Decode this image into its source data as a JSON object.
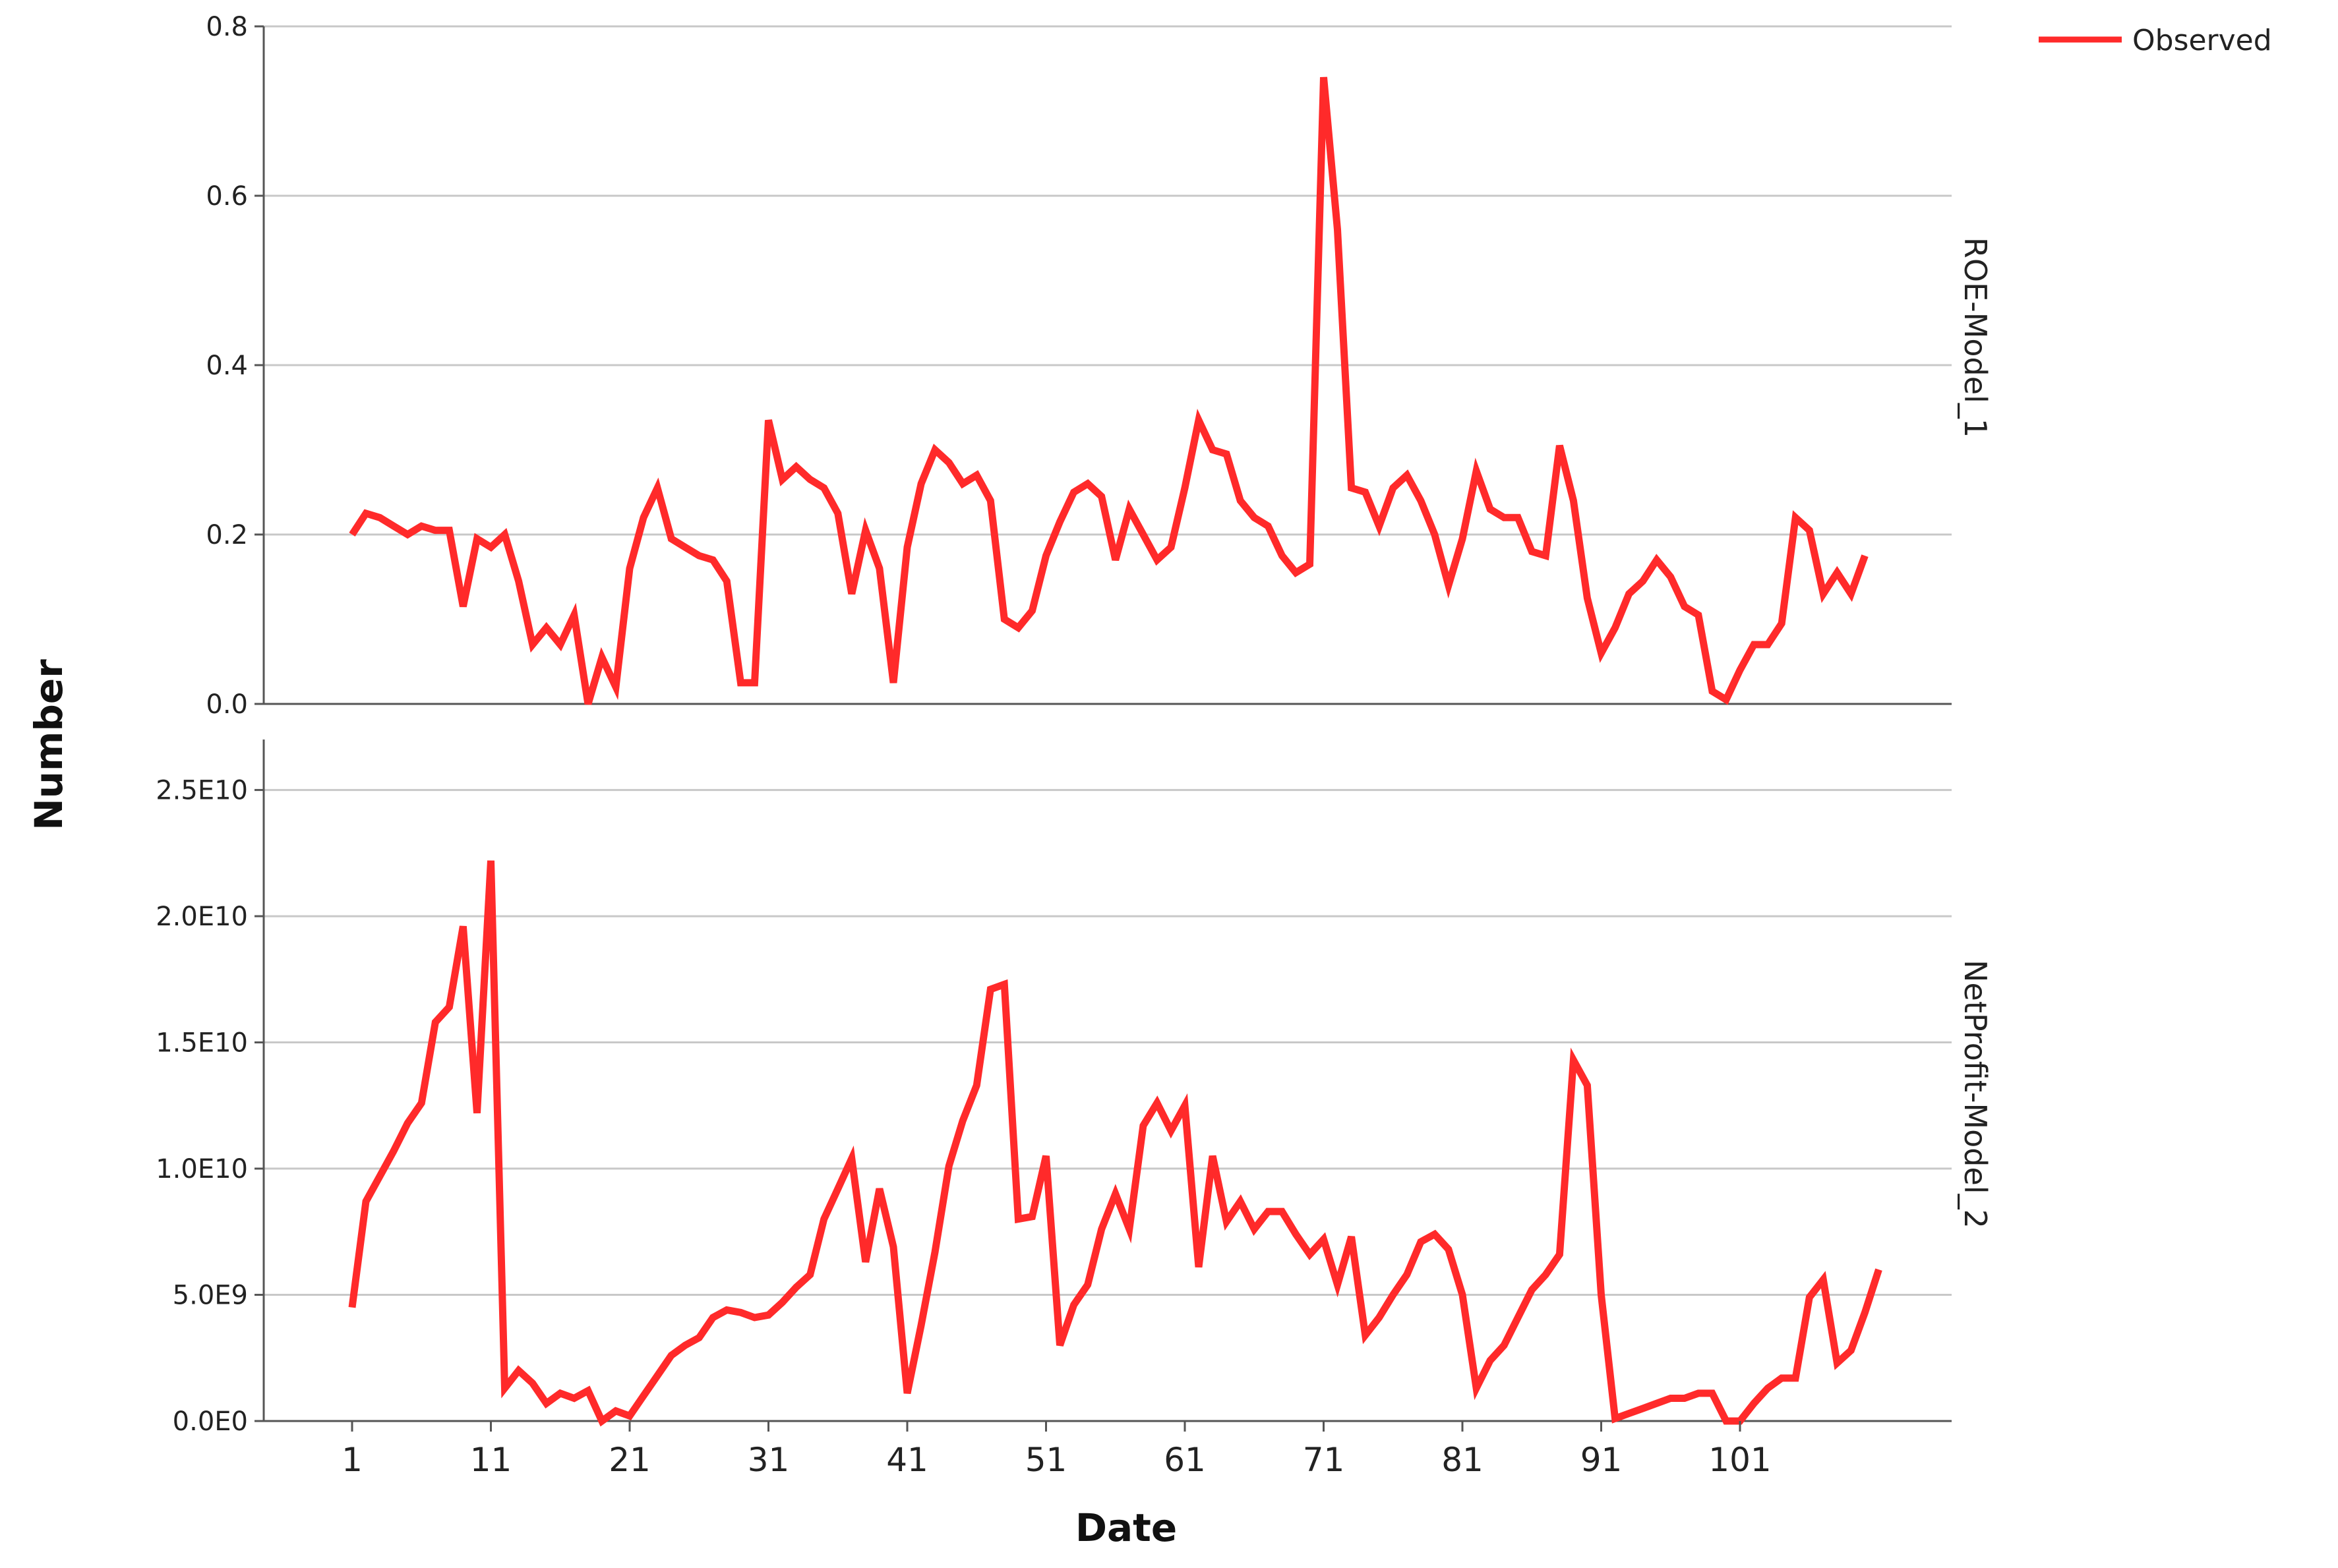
{
  "chart_data": {
    "type": "line",
    "xlabel": "Date",
    "ylabel": "Number",
    "x_ticks": [
      1,
      11,
      21,
      31,
      41,
      51,
      61,
      71,
      81,
      91,
      101
    ],
    "legend": {
      "entries": [
        "Observed"
      ],
      "position": "top-right",
      "color": "#ff2a2a"
    },
    "grid": true,
    "panels": [
      {
        "label": "ROE-Model_1",
        "ylim": [
          0,
          0.8
        ],
        "y_ticks": [
          "0.0",
          "0.2",
          "0.4",
          "0.6",
          "0.8"
        ],
        "y_tick_values": [
          0,
          0.2,
          0.4,
          0.6,
          0.8
        ],
        "series": [
          {
            "name": "Observed",
            "values": [
              0.2,
              0.225,
              0.22,
              0.21,
              0.2,
              0.21,
              0.205,
              0.205,
              0.115,
              0.195,
              0.185,
              0.2,
              0.145,
              0.07,
              0.09,
              0.07,
              0.105,
              0.0,
              0.055,
              0.02,
              0.16,
              0.22,
              0.255,
              0.195,
              0.185,
              0.175,
              0.17,
              0.145,
              0.025,
              0.025,
              0.335,
              0.265,
              0.28,
              0.265,
              0.255,
              0.225,
              0.13,
              0.205,
              0.16,
              0.025,
              0.185,
              0.26,
              0.3,
              0.285,
              0.26,
              0.27,
              0.24,
              0.1,
              0.09,
              0.11,
              0.175,
              0.215,
              0.25,
              0.26,
              0.245,
              0.17,
              0.23,
              0.2,
              0.17,
              0.185,
              0.255,
              0.335,
              0.3,
              0.295,
              0.24,
              0.22,
              0.21,
              0.175,
              0.155,
              0.165,
              0.74,
              0.56,
              0.255,
              0.25,
              0.21,
              0.255,
              0.27,
              0.24,
              0.2,
              0.14,
              0.195,
              0.275,
              0.23,
              0.22,
              0.22,
              0.18,
              0.175,
              0.305,
              0.24,
              0.125,
              0.06,
              0.09,
              0.13,
              0.145,
              0.17,
              0.15,
              0.115,
              0.105,
              0.015,
              0.005,
              0.04,
              0.07,
              0.07,
              0.095,
              0.22,
              0.205,
              0.13,
              0.155,
              0.13,
              0.175
            ]
          }
        ]
      },
      {
        "label": "NetProfit-Model_2",
        "ylim": [
          0,
          27000000000
        ],
        "y_ticks": [
          "0.0E0",
          "5.0E9",
          "1.0E10",
          "1.5E10",
          "2.0E10",
          "2.5E10"
        ],
        "y_tick_values": [
          0,
          5000000000,
          10000000000,
          15000000000,
          20000000000,
          25000000000
        ],
        "series": [
          {
            "name": "Observed",
            "values": [
              4500000000,
              8700000000,
              9700000000,
              10700000000,
              11800000000,
              12600000000,
              15800000000,
              16400000000,
              19600000000,
              12200000000,
              22200000000,
              1300000000,
              2000000000,
              1500000000,
              700000000,
              1100000000,
              900000000,
              1200000000,
              0,
              400000000,
              200000000,
              1000000000,
              1800000000,
              2600000000,
              3000000000,
              3300000000,
              4100000000,
              4400000000,
              4300000000,
              4100000000,
              4200000000,
              4700000000,
              5300000000,
              5800000000,
              8000000000,
              9200000000,
              10400000000,
              6300000000,
              9200000000,
              6900000000,
              1100000000,
              3800000000,
              6700000000,
              10100000000,
              11900000000,
              13300000000,
              17100000000,
              17300000000,
              8000000000,
              8100000000,
              10500000000,
              3000000000,
              4600000000,
              5400000000,
              7600000000,
              9000000000,
              7600000000,
              11700000000,
              12600000000,
              11500000000,
              12500000000,
              6100000000,
              10500000000,
              7900000000,
              8700000000,
              7600000000,
              8300000000,
              8300000000,
              7400000000,
              6600000000,
              7200000000,
              5400000000,
              7300000000,
              3400000000,
              4100000000,
              5000000000,
              5800000000,
              7100000000,
              7400000000,
              6800000000,
              5000000000,
              1300000000,
              2400000000,
              3000000000,
              4100000000,
              5200000000,
              5800000000,
              6600000000,
              14300000000,
              13300000000,
              5000000000,
              100000000,
              300000000,
              500000000,
              700000000,
              900000000,
              900000000,
              1100000000,
              1100000000,
              0,
              0,
              700000000,
              1300000000,
              1700000000,
              1700000000,
              4900000000,
              5600000000,
              2300000000,
              2800000000,
              4300000000,
              6000000000
            ]
          }
        ]
      }
    ]
  }
}
